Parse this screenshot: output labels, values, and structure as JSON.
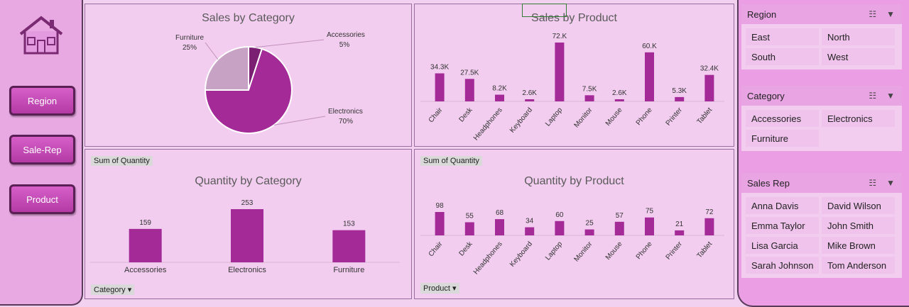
{
  "nav": {
    "buttons": [
      "Region",
      "Sale-Rep",
      "Product"
    ]
  },
  "panels": {
    "sales_category": {
      "title": "Sales by Category"
    },
    "sales_product": {
      "title": "Sales by Product"
    },
    "qty_category": {
      "title": "Quantity by Category",
      "field_tag": "Sum of Quantity",
      "filter_tag": "Category"
    },
    "qty_product": {
      "title": "Quantity by Product",
      "field_tag": "Sum of Quantity",
      "filter_tag": "Product"
    }
  },
  "chart_data": [
    {
      "type": "pie",
      "title": "Sales by Category",
      "slices": [
        {
          "label": "Accessories",
          "pct_label": "5%",
          "value": 5,
          "color": "#7b1f72"
        },
        {
          "label": "Electronics",
          "pct_label": "70%",
          "value": 70,
          "color": "#a42a98"
        },
        {
          "label": "Furniture",
          "pct_label": "25%",
          "value": 25,
          "color": "#c8a2c4"
        }
      ]
    },
    {
      "type": "bar",
      "title": "Sales by Product",
      "categories": [
        "Chair",
        "Desk",
        "Headphones",
        "Keyboard",
        "Laptop",
        "Monitor",
        "Mouse",
        "Phone",
        "Printer",
        "Tablet"
      ],
      "values": [
        34300,
        27500,
        8200,
        2600,
        72000,
        7500,
        2600,
        60000,
        5300,
        32400
      ],
      "labels": [
        "34.3K",
        "27.5K",
        "8.2K",
        "2.6K",
        "72.K",
        "7.5K",
        "2.6K",
        "60.K",
        "5.3K",
        "32.4K"
      ],
      "color": "#a42a98"
    },
    {
      "type": "bar",
      "title": "Quantity by Category",
      "categories": [
        "Accessories",
        "Electronics",
        "Furniture"
      ],
      "values": [
        159,
        253,
        153
      ],
      "color": "#a42a98"
    },
    {
      "type": "bar",
      "title": "Quantity by Product",
      "categories": [
        "Chair",
        "Desk",
        "Headphones",
        "Keyboard",
        "Laptop",
        "Monitor",
        "Mouse",
        "Phone",
        "Printer",
        "Tablet"
      ],
      "values": [
        98,
        55,
        68,
        34,
        60,
        25,
        57,
        75,
        21,
        72
      ],
      "color": "#a42a98"
    }
  ],
  "slicers": [
    {
      "title": "Region",
      "items": [
        "East",
        "North",
        "South",
        "West"
      ]
    },
    {
      "title": "Category",
      "items": [
        "Accessories",
        "Electronics",
        "Furniture"
      ]
    },
    {
      "title": "Sales Rep",
      "items": [
        "Anna Davis",
        "David Wilson",
        "Emma Taylor",
        "John Smith",
        "Lisa Garcia",
        "Mike Brown",
        "Sarah Johnson",
        "Tom Anderson"
      ]
    }
  ],
  "icons": {
    "home": "home-icon",
    "multiselect": "multiselect-icon",
    "clear_filter": "clear-filter-icon"
  }
}
